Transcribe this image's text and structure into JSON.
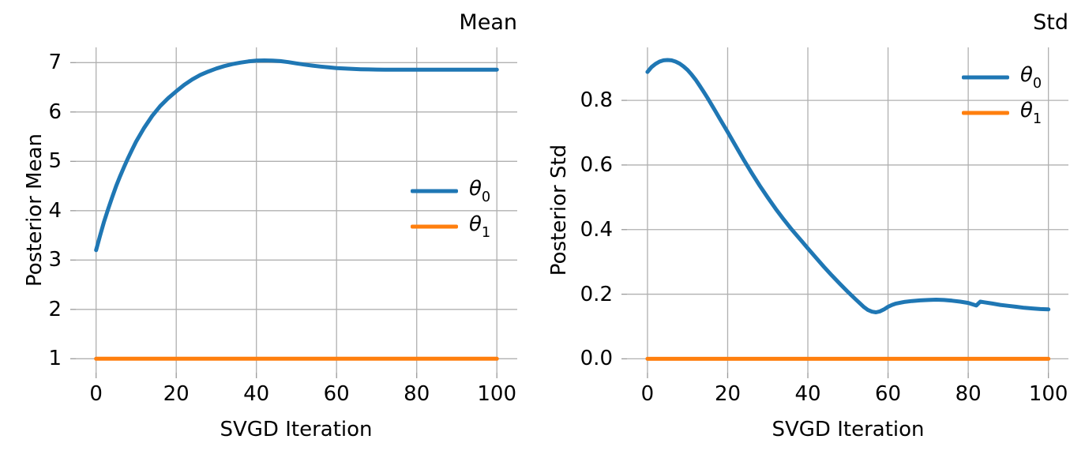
{
  "figure": {
    "background": "#ffffff",
    "grid_color": "#b0b0b0",
    "tick_color": "#9a9a9a",
    "text_color": "#000000"
  },
  "chart_data": [
    {
      "type": "line",
      "title": "Mean",
      "xlabel": "SVGD Iteration",
      "ylabel": "Posterior Mean",
      "grid": "on",
      "legend_position": "center-right",
      "legend_frame": "off",
      "xlim": [
        -5.06,
        105.08
      ],
      "ylim": [
        0.717,
        7.309
      ],
      "xticks": {
        "values": [
          0,
          20,
          40,
          60,
          80,
          100
        ],
        "labels": [
          "0",
          "20",
          "40",
          "60",
          "80",
          "100"
        ]
      },
      "yticks": {
        "values": [
          1,
          2,
          3,
          4,
          5,
          6,
          7
        ],
        "labels": [
          "1",
          "2",
          "3",
          "4",
          "5",
          "6",
          "7"
        ]
      },
      "series": [
        {
          "name": "theta0",
          "legend_base": "θ",
          "legend_sub": "0",
          "color": "#1f77b4",
          "points": [
            [
              0,
              3.2
            ],
            [
              1,
              3.5
            ],
            [
              2,
              3.78
            ],
            [
              3,
              4.03
            ],
            [
              4,
              4.27
            ],
            [
              5,
              4.5
            ],
            [
              6,
              4.7
            ],
            [
              7,
              4.89
            ],
            [
              8,
              5.07
            ],
            [
              9,
              5.24
            ],
            [
              10,
              5.4
            ],
            [
              12,
              5.68
            ],
            [
              14,
              5.92
            ],
            [
              16,
              6.12
            ],
            [
              18,
              6.28
            ],
            [
              20,
              6.42
            ],
            [
              22,
              6.55
            ],
            [
              24,
              6.66
            ],
            [
              26,
              6.75
            ],
            [
              28,
              6.82
            ],
            [
              30,
              6.88
            ],
            [
              32,
              6.93
            ],
            [
              34,
              6.97
            ],
            [
              36,
              7.0
            ],
            [
              38,
              7.025
            ],
            [
              40,
              7.04
            ],
            [
              42,
              7.045
            ],
            [
              44,
              7.04
            ],
            [
              46,
              7.03
            ],
            [
              48,
              7.01
            ],
            [
              50,
              6.985
            ],
            [
              52,
              6.96
            ],
            [
              54,
              6.94
            ],
            [
              56,
              6.92
            ],
            [
              58,
              6.905
            ],
            [
              60,
              6.89
            ],
            [
              62,
              6.88
            ],
            [
              64,
              6.872
            ],
            [
              66,
              6.866
            ],
            [
              68,
              6.862
            ],
            [
              70,
              6.859
            ],
            [
              72,
              6.857
            ],
            [
              74,
              6.856
            ],
            [
              76,
              6.856
            ],
            [
              78,
              6.856
            ],
            [
              80,
              6.857
            ],
            [
              84,
              6.858
            ],
            [
              88,
              6.858
            ],
            [
              92,
              6.858
            ],
            [
              96,
              6.858
            ],
            [
              100,
              6.858
            ]
          ]
        },
        {
          "name": "theta1",
          "legend_base": "θ",
          "legend_sub": "1",
          "color": "#ff7f0e",
          "points": [
            [
              0,
              1
            ],
            [
              100,
              1
            ]
          ]
        }
      ]
    },
    {
      "type": "line",
      "title": "Std",
      "xlabel": "SVGD Iteration",
      "ylabel": "Posterior Std",
      "grid": "on",
      "legend_position": "upper-right",
      "legend_frame": "off",
      "xlim": [
        -5.11,
        104.99
      ],
      "ylim": [
        -0.043,
        0.964
      ],
      "xticks": {
        "values": [
          0,
          20,
          40,
          60,
          80,
          100
        ],
        "labels": [
          "0",
          "20",
          "40",
          "60",
          "80",
          "100"
        ]
      },
      "yticks": {
        "values": [
          0.0,
          0.2,
          0.4,
          0.6,
          0.8
        ],
        "labels": [
          "0.0",
          "0.2",
          "0.4",
          "0.6",
          "0.8"
        ]
      },
      "series": [
        {
          "name": "theta0",
          "legend_base": "θ",
          "legend_sub": "0",
          "color": "#1f77b4",
          "points": [
            [
              0,
              0.888
            ],
            [
              1,
              0.903
            ],
            [
              2,
              0.913
            ],
            [
              3,
              0.92
            ],
            [
              4,
              0.924
            ],
            [
              5,
              0.925
            ],
            [
              6,
              0.924
            ],
            [
              7,
              0.92
            ],
            [
              8,
              0.914
            ],
            [
              9,
              0.905
            ],
            [
              10,
              0.894
            ],
            [
              11,
              0.88
            ],
            [
              12,
              0.864
            ],
            [
              13,
              0.846
            ],
            [
              14,
              0.827
            ],
            [
              15,
              0.807
            ],
            [
              16,
              0.786
            ],
            [
              17,
              0.765
            ],
            [
              18,
              0.744
            ],
            [
              19,
              0.723
            ],
            [
              20,
              0.702
            ],
            [
              22,
              0.659
            ],
            [
              24,
              0.616
            ],
            [
              26,
              0.575
            ],
            [
              28,
              0.536
            ],
            [
              30,
              0.499
            ],
            [
              32,
              0.464
            ],
            [
              34,
              0.431
            ],
            [
              36,
              0.4
            ],
            [
              38,
              0.371
            ],
            [
              40,
              0.342
            ],
            [
              42,
              0.313
            ],
            [
              44,
              0.285
            ],
            [
              46,
              0.258
            ],
            [
              48,
              0.232
            ],
            [
              50,
              0.207
            ],
            [
              52,
              0.183
            ],
            [
              54,
              0.16
            ],
            [
              55,
              0.151
            ],
            [
              56,
              0.146
            ],
            [
              57,
              0.144
            ],
            [
              58,
              0.147
            ],
            [
              59,
              0.153
            ],
            [
              60,
              0.161
            ],
            [
              61,
              0.167
            ],
            [
              62,
              0.171
            ],
            [
              64,
              0.176
            ],
            [
              66,
              0.179
            ],
            [
              68,
              0.181
            ],
            [
              70,
              0.182
            ],
            [
              72,
              0.183
            ],
            [
              74,
              0.182
            ],
            [
              76,
              0.18
            ],
            [
              78,
              0.177
            ],
            [
              80,
              0.173
            ],
            [
              81,
              0.169
            ],
            [
              82,
              0.165
            ],
            [
              83,
              0.177
            ],
            [
              84,
              0.175
            ],
            [
              86,
              0.171
            ],
            [
              88,
              0.167
            ],
            [
              90,
              0.164
            ],
            [
              92,
              0.161
            ],
            [
              94,
              0.158
            ],
            [
              96,
              0.156
            ],
            [
              98,
              0.154
            ],
            [
              100,
              0.153
            ]
          ]
        },
        {
          "name": "theta1",
          "legend_base": "θ",
          "legend_sub": "1",
          "color": "#ff7f0e",
          "points": [
            [
              0,
              0
            ],
            [
              100,
              0
            ]
          ]
        }
      ]
    }
  ]
}
